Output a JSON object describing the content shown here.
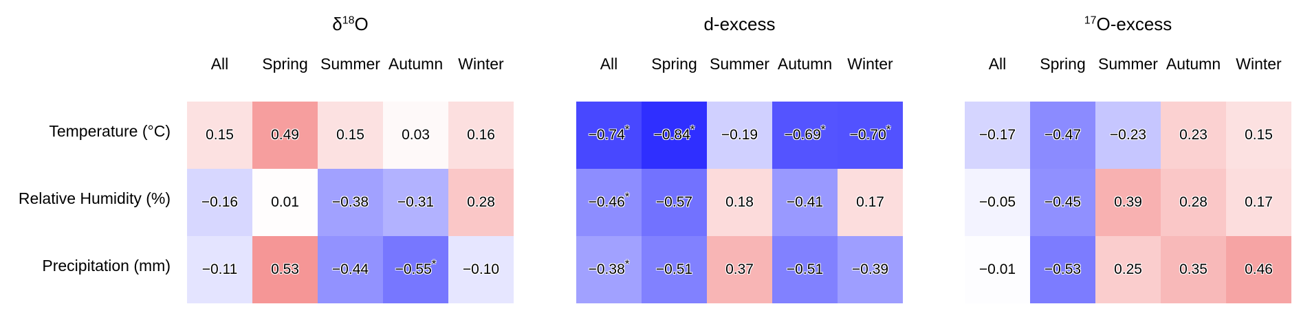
{
  "chart_data": {
    "type": "heatmap",
    "rows": [
      "Temperature (°C)",
      "Relative Humidity (%)",
      "Precipitation (mm)"
    ],
    "columns": [
      "All",
      "Spring",
      "Summer",
      "Autumn",
      "Winter"
    ],
    "colors": {
      "negative": "#2020ff",
      "positive": "#ee4c4c",
      "neutral": "#ffffff"
    },
    "panels": [
      {
        "title_base": "δ",
        "title_sup": "18",
        "title_tail": "O",
        "values": [
          [
            0.15,
            0.49,
            0.15,
            0.03,
            0.16
          ],
          [
            -0.16,
            0.01,
            -0.38,
            -0.31,
            0.28
          ],
          [
            -0.11,
            0.53,
            -0.44,
            -0.55,
            -0.1
          ]
        ],
        "labels": [
          [
            "0.15",
            "0.49",
            "0.15",
            "0.03",
            "0.16"
          ],
          [
            "−0.16",
            "0.01",
            "−0.38",
            "−0.31",
            "0.28"
          ],
          [
            "−0.11",
            "0.53",
            "−0.44",
            "−0.55",
            "−0.10"
          ]
        ],
        "significant": [
          [
            false,
            false,
            false,
            false,
            false
          ],
          [
            false,
            false,
            false,
            false,
            false
          ],
          [
            false,
            false,
            false,
            true,
            false
          ]
        ]
      },
      {
        "title_base": "d-excess",
        "title_sup": "",
        "title_tail": "",
        "values": [
          [
            -0.74,
            -0.84,
            -0.19,
            -0.69,
            -0.7
          ],
          [
            -0.46,
            -0.57,
            0.18,
            -0.41,
            0.17
          ],
          [
            -0.38,
            -0.51,
            0.37,
            -0.51,
            -0.39
          ]
        ],
        "labels": [
          [
            "−0.74",
            "−0.84",
            "−0.19",
            "−0.69",
            "−0.70"
          ],
          [
            "−0.46",
            "−0.57",
            "0.18",
            "−0.41",
            "0.17"
          ],
          [
            "−0.38",
            "−0.51",
            "0.37",
            "−0.51",
            "−0.39"
          ]
        ],
        "significant": [
          [
            true,
            true,
            false,
            true,
            true
          ],
          [
            true,
            false,
            false,
            false,
            false
          ],
          [
            true,
            false,
            false,
            false,
            false
          ]
        ]
      },
      {
        "title_base": "",
        "title_sup": "17",
        "title_tail": "O-excess",
        "values": [
          [
            -0.17,
            -0.47,
            -0.23,
            0.23,
            0.15
          ],
          [
            -0.05,
            -0.45,
            0.39,
            0.28,
            0.17
          ],
          [
            -0.01,
            -0.53,
            0.25,
            0.35,
            0.46
          ]
        ],
        "labels": [
          [
            "−0.17",
            "−0.47",
            "−0.23",
            "0.23",
            "0.15"
          ],
          [
            "−0.05",
            "−0.45",
            "0.39",
            "0.28",
            "0.17"
          ],
          [
            "−0.01",
            "−0.53",
            "0.25",
            "0.35",
            "0.46"
          ]
        ],
        "significant": [
          [
            false,
            false,
            false,
            false,
            false
          ],
          [
            false,
            false,
            false,
            false,
            false
          ],
          [
            false,
            false,
            false,
            false,
            false
          ]
        ]
      }
    ],
    "significance_marker": "*"
  }
}
